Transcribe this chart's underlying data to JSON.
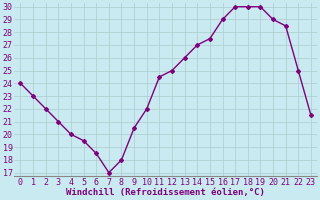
{
  "x": [
    0,
    1,
    2,
    3,
    4,
    5,
    6,
    7,
    8,
    9,
    10,
    11,
    12,
    13,
    14,
    15,
    16,
    17,
    18,
    19,
    20,
    21,
    22,
    23
  ],
  "y": [
    24,
    23,
    22,
    21,
    20,
    19.5,
    18.5,
    17,
    18,
    20.5,
    22,
    24.5,
    25,
    26,
    27,
    27.5,
    29,
    30,
    30,
    30,
    29,
    28.5,
    25,
    21.5
  ],
  "line_color": "#800080",
  "marker": "D",
  "marker_size": 2.0,
  "background_color": "#c8eaf0",
  "grid_color": "#aacccc",
  "xlabel": "Windchill (Refroidissement éolien,°C)",
  "xlabel_color": "#800080",
  "tick_color": "#800080",
  "ylim_min": 17,
  "ylim_max": 30,
  "yticks": [
    17,
    18,
    19,
    20,
    21,
    22,
    23,
    24,
    25,
    26,
    27,
    28,
    29,
    30
  ],
  "xticks": [
    0,
    1,
    2,
    3,
    4,
    5,
    6,
    7,
    8,
    9,
    10,
    11,
    12,
    13,
    14,
    15,
    16,
    17,
    18,
    19,
    20,
    21,
    22,
    23
  ],
  "font_size": 6,
  "label_font_size": 6.5,
  "linewidth": 1.0
}
